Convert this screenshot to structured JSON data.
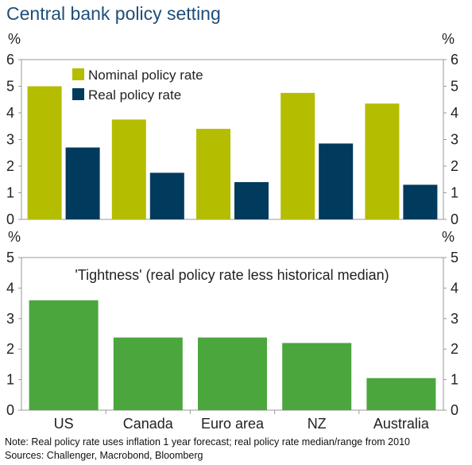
{
  "title": "Central bank policy setting",
  "notes": {
    "note": "Note: Real policy rate uses inflation 1 year forecast; real policy rate median/range from 2010",
    "sources": "Sources: Challenger, Macrobond, Bloomberg"
  },
  "colors": {
    "nominal": "#b5bd00",
    "real": "#003a5d",
    "tightness": "#4aa63d",
    "title": "#1f4e79"
  },
  "chart_data": [
    {
      "type": "bar",
      "unit_label": "%",
      "categories": [
        "US",
        "Canada",
        "Euro area",
        "NZ",
        "Australia"
      ],
      "series": [
        {
          "name": "Nominal policy rate",
          "values": [
            5.0,
            3.75,
            3.4,
            4.75,
            4.35
          ]
        },
        {
          "name": "Real policy rate",
          "values": [
            2.7,
            1.75,
            1.4,
            2.85,
            1.3
          ]
        }
      ],
      "ylim": [
        0,
        6
      ],
      "yticks": [
        0,
        1,
        2,
        3,
        4,
        5,
        6
      ],
      "legend": "top-left"
    },
    {
      "type": "bar",
      "title": "'Tightness' (real policy rate less historical median)",
      "unit_label": "%",
      "categories": [
        "US",
        "Canada",
        "Euro area",
        "NZ",
        "Australia"
      ],
      "series": [
        {
          "values": [
            3.6,
            2.38,
            2.38,
            2.2,
            1.05
          ]
        }
      ],
      "ylim": [
        0,
        5
      ],
      "yticks": [
        0,
        1,
        2,
        3,
        4,
        5
      ]
    }
  ]
}
